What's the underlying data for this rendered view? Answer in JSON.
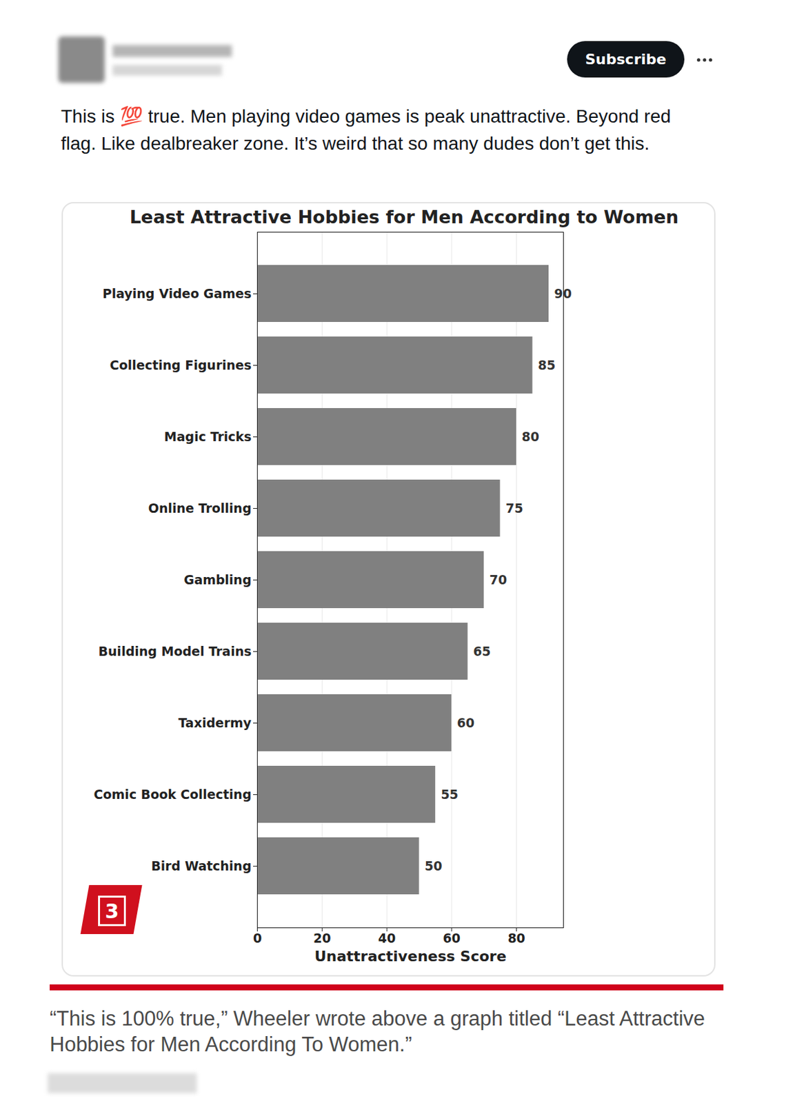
{
  "post": {
    "button": "Subscribe",
    "text": "This is 💯 true. Men playing video games is peak unattractive. Beyond red flag. Like dealbreaker zone. It’s weird that so many dudes don’t get this."
  },
  "chart_data": {
    "type": "bar",
    "orientation": "horizontal",
    "title": "Least Attractive Hobbies for Men According to Women",
    "x_label": "Unattractiveness Score",
    "categories": [
      "Playing Video Games",
      "Collecting Figurines",
      "Magic Tricks",
      "Online Trolling",
      "Gambling",
      "Building Model Trains",
      "Taxidermy",
      "Comic Book Collecting",
      "Bird Watching"
    ],
    "values": [
      90,
      85,
      80,
      75,
      70,
      65,
      60,
      55,
      50
    ],
    "color": "#808080",
    "xlim": [
      0,
      94.5
    ],
    "xticks": [
      0,
      20,
      40,
      60,
      80
    ],
    "grid": true,
    "data_labels": true
  },
  "badge": "3",
  "caption": "“This is 100% true,” Wheeler wrote above a graph titled “Least Attractive Hobbies for Men According To Women.”"
}
